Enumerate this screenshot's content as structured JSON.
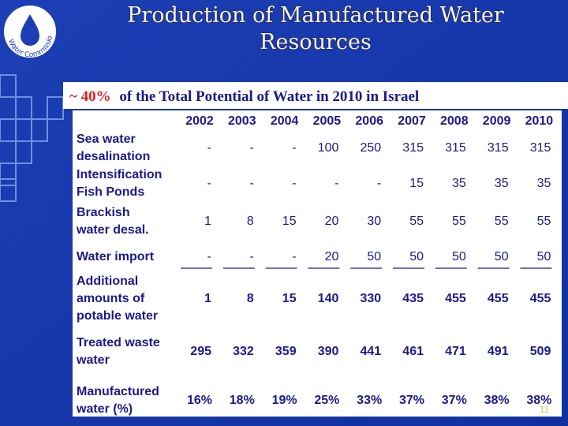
{
  "logo": {
    "text": "Water Commission"
  },
  "header": {
    "title_lines": [
      "Production of Manufactured Water",
      "Resources"
    ],
    "subtitle_highlight": "~ 40%",
    "subtitle_rest": "of the Total Potential of Water in 2010 in Israel"
  },
  "table": {
    "columns": [
      "2002",
      "2003",
      "2004",
      "2005",
      "2006",
      "2007",
      "2008",
      "2009",
      "2010"
    ],
    "rows": [
      {
        "label": [
          "Sea water",
          "desalination"
        ],
        "cells": [
          "-",
          "-",
          "-",
          100,
          250,
          315,
          315,
          315,
          315
        ]
      },
      {
        "label": [
          "Intensification",
          "Fish Ponds"
        ],
        "cells": [
          "-",
          "-",
          "-",
          "-",
          "-",
          15,
          35,
          35,
          35
        ]
      },
      {
        "label": [
          "Brackish",
          "water desal."
        ],
        "cells": [
          1,
          8,
          15,
          20,
          30,
          55,
          55,
          55,
          55
        ]
      },
      {
        "label": [
          "Water import"
        ],
        "cells": [
          "-",
          "-",
          "-",
          20,
          50,
          50,
          50,
          50,
          50
        ]
      },
      {
        "label": [
          "Additional",
          "amounts of",
          "potable water"
        ],
        "cells": [
          1,
          8,
          15,
          140,
          330,
          435,
          455,
          455,
          455
        ]
      },
      {
        "label": [
          "Treated waste",
          "water"
        ],
        "cells": [
          295,
          332,
          359,
          390,
          441,
          461,
          471,
          491,
          509
        ]
      },
      {
        "label": [
          "Manufactured",
          "water (%)"
        ],
        "cells": [
          "16%",
          "18%",
          "19%",
          "25%",
          "33%",
          "37%",
          "37%",
          "38%",
          "38%"
        ]
      }
    ]
  },
  "footer": {
    "page_number": "11"
  }
}
